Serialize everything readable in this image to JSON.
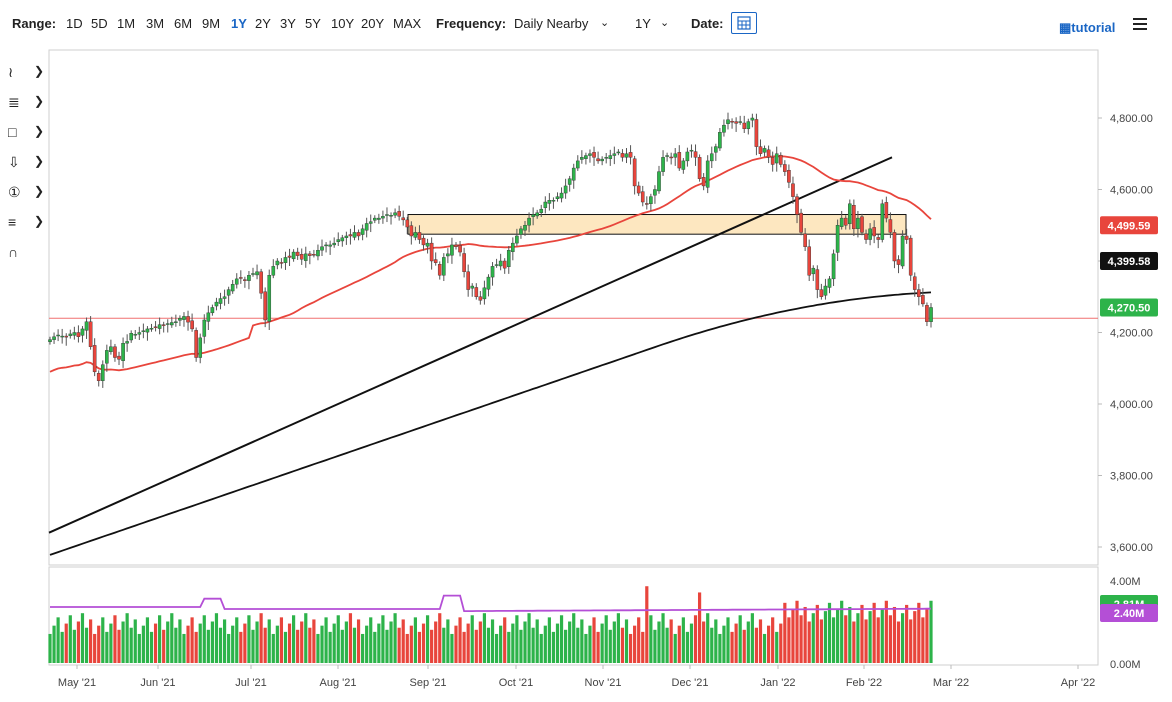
{
  "toolbar": {
    "range_label": "Range:",
    "ranges": [
      "1D",
      "5D",
      "1M",
      "3M",
      "6M",
      "9M",
      "1Y",
      "2Y",
      "3Y",
      "5Y",
      "10Y",
      "20Y",
      "MAX"
    ],
    "active_range": "1Y",
    "frequency_label": "Frequency:",
    "frequency_value": "Daily Nearby",
    "period_value": "1Y",
    "date_label": "Date:",
    "tutorial": "tutorial"
  },
  "side_tools": [
    "crosshair-tool",
    "trendline-tool",
    "rectangle-tool",
    "arrow-tool",
    "counter-tool",
    "fib-tool",
    "magnet-tool"
  ],
  "colors": {
    "up": "#2db34a",
    "down": "#e8453c",
    "ma50": "#e8453c",
    "ma200": "#111111",
    "volume_ma": "#b44fd6",
    "support_line": "#f07070"
  },
  "chart_data": {
    "type": "candlestick",
    "price_axis": {
      "ticks": [
        "4,800.00",
        "4,600.00",
        "4,400.00",
        "4,200.00",
        "4,000.00",
        "3,800.00",
        "3,600.00"
      ],
      "ylim": [
        3600,
        4850
      ]
    },
    "x_ticks": [
      "May '21",
      "Jun '21",
      "Jul '21",
      "Aug '21",
      "Sep '21",
      "Oct '21",
      "Nov '21",
      "Dec '21",
      "Jan '22",
      "Feb '22",
      "Mar '22",
      "Apr '22"
    ],
    "price_labels": {
      "ma50": "4,499.59",
      "ma200": "4,399.58",
      "last": "4,270.50"
    },
    "volume_axis": {
      "ticks": [
        "4.00M",
        "0.00M"
      ]
    },
    "volume_labels": {
      "volume": "2.81M",
      "volume_ma": "2.40M"
    },
    "support_level": 4240,
    "resistance_zone": [
      4475,
      4530
    ],
    "closes": [
      4180,
      4188,
      4193,
      4190,
      4187,
      4196,
      4200,
      4188,
      4210,
      4230,
      4160,
      4090,
      4065,
      4110,
      4150,
      4160,
      4130,
      4125,
      4170,
      4175,
      4198,
      4195,
      4200,
      4205,
      4210,
      4212,
      4215,
      4222,
      4220,
      4225,
      4228,
      4230,
      4240,
      4245,
      4229,
      4210,
      4130,
      4185,
      4235,
      4255,
      4270,
      4285,
      4295,
      4300,
      4320,
      4335,
      4350,
      4352,
      4345,
      4360,
      4365,
      4370,
      4310,
      4235,
      4360,
      4385,
      4400,
      4395,
      4410,
      4410,
      4425,
      4415,
      4405,
      4420,
      4415,
      4418,
      4430,
      4440,
      4445,
      4445,
      4450,
      4460,
      4465,
      4470,
      4470,
      4480,
      4470,
      4490,
      4505,
      4510,
      4520,
      4520,
      4525,
      4530,
      4528,
      4535,
      4525,
      4515,
      4495,
      4470,
      4480,
      4460,
      4445,
      4450,
      4400,
      4395,
      4360,
      4410,
      4420,
      4445,
      4440,
      4425,
      4370,
      4320,
      4330,
      4300,
      4290,
      4325,
      4355,
      4385,
      4390,
      4400,
      4380,
      4430,
      4450,
      4470,
      4490,
      4500,
      4520,
      4530,
      4535,
      4545,
      4565,
      4570,
      4570,
      4580,
      4590,
      4610,
      4630,
      4660,
      4680,
      4690,
      4695,
      4700,
      4690,
      4680,
      4685,
      4690,
      4695,
      4700,
      4705,
      4690,
      4700,
      4690,
      4610,
      4590,
      4565,
      4560,
      4580,
      4600,
      4650,
      4690,
      4695,
      4690,
      4700,
      4660,
      4680,
      4705,
      4710,
      4690,
      4630,
      4610,
      4680,
      4700,
      4720,
      4760,
      4780,
      4795,
      4790,
      4785,
      4790,
      4770,
      4790,
      4800,
      4720,
      4700,
      4715,
      4690,
      4670,
      4700,
      4670,
      4650,
      4620,
      4580,
      4530,
      4480,
      4440,
      4360,
      4380,
      4320,
      4300,
      4330,
      4350,
      4420,
      4500,
      4520,
      4500,
      4560,
      4490,
      4520,
      4480,
      4460,
      4490,
      4470,
      4460,
      4560,
      4520,
      4480,
      4400,
      4390,
      4470,
      4460,
      4360,
      4320,
      4300,
      4280,
      4230,
      4270
    ]
  }
}
